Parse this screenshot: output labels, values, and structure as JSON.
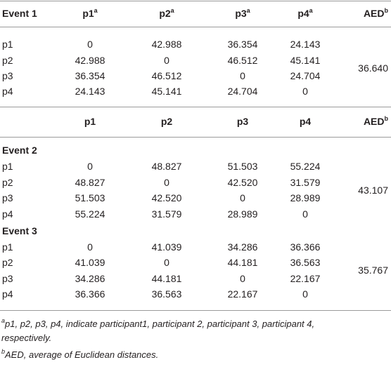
{
  "header_1": {
    "label": "Event 1",
    "columns": [
      {
        "text": "p1",
        "sup": "a"
      },
      {
        "text": "p2",
        "sup": "a"
      },
      {
        "text": "p3",
        "sup": "a"
      },
      {
        "text": "p4",
        "sup": "a"
      }
    ],
    "aed": {
      "text": "AED",
      "sup": "b"
    }
  },
  "event_1": {
    "rows": [
      [
        "p1",
        "0",
        "42.988",
        "36.354",
        "24.143"
      ],
      [
        "p2",
        "42.988",
        "0",
        "46.512",
        "45.141"
      ],
      [
        "p3",
        "36.354",
        "46.512",
        "0",
        "24.704"
      ],
      [
        "p4",
        "24.143",
        "45.141",
        "24.704",
        "0"
      ]
    ],
    "aed": "36.640"
  },
  "header_2": {
    "columns": [
      "p1",
      "p2",
      "p3",
      "p4"
    ],
    "aed": {
      "text": "AED",
      "sup": "b"
    }
  },
  "event_2": {
    "label": "Event 2",
    "rows": [
      [
        "p1",
        "0",
        "48.827",
        "51.503",
        "55.224"
      ],
      [
        "p2",
        "48.827",
        "0",
        "42.520",
        "31.579"
      ],
      [
        "p3",
        "51.503",
        "42.520",
        "0",
        "28.989"
      ],
      [
        "p4",
        "55.224",
        "31.579",
        "28.989",
        "0"
      ]
    ],
    "aed": "43.107"
  },
  "event_3": {
    "label": "Event 3",
    "rows": [
      [
        "p1",
        "0",
        "41.039",
        "34.286",
        "36.366"
      ],
      [
        "p2",
        "41.039",
        "0",
        "44.181",
        "36.563"
      ],
      [
        "p3",
        "34.286",
        "44.181",
        "0",
        "22.167"
      ],
      [
        "p4",
        "36.366",
        "36.563",
        "22.167",
        "0"
      ]
    ],
    "aed": "35.767"
  },
  "footnotes": [
    {
      "sup": "a",
      "text": "p1, p2, p3, p4, indicate participant1, participant 2, participant 3, participant 4, respectively."
    },
    {
      "sup": "b",
      "text": "AED, average of Euclidean distances."
    }
  ]
}
